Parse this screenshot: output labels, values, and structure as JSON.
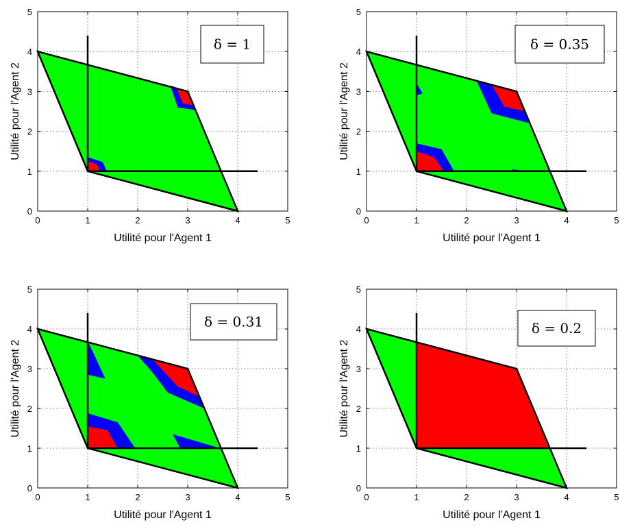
{
  "colors": {
    "green": "#00ff00",
    "red": "#ff0000",
    "blue": "#0000ff",
    "line": "#000000"
  },
  "chart_data": [
    {
      "type": "area",
      "legend": "δ = 1",
      "legend_placement": "top-right",
      "xlabel": "Utilité pour l'Agent 1",
      "ylabel": "Utilité pour l'Agent 2",
      "xlim": [
        0,
        5
      ],
      "ylim": [
        0,
        5
      ],
      "xticks": [
        "0",
        "1",
        "2",
        "3",
        "4",
        "5"
      ],
      "yticks": [
        "0",
        "1",
        "2",
        "3",
        "4",
        "5"
      ],
      "grid": true,
      "disagreement_point": [
        1,
        1
      ],
      "axis_extent": 4.4,
      "feasible_region": [
        [
          0,
          4
        ],
        [
          3,
          3
        ],
        [
          4,
          0
        ],
        [
          1,
          1
        ]
      ],
      "regions": [
        {
          "color": "blue",
          "points": [
            [
              2.65,
              3.15
            ],
            [
              3.0,
              3.0
            ],
            [
              3.17,
              2.53
            ],
            [
              2.8,
              2.6
            ]
          ]
        },
        {
          "color": "red",
          "points": [
            [
              2.78,
              3.07
            ],
            [
              3.0,
              3.0
            ],
            [
              3.12,
              2.65
            ],
            [
              2.9,
              2.7
            ]
          ]
        },
        {
          "color": "blue",
          "points": [
            [
              1.0,
              1.35
            ],
            [
              1.3,
              1.23
            ],
            [
              1.38,
              1.0
            ],
            [
              1.0,
              1.0
            ]
          ]
        },
        {
          "color": "red",
          "points": [
            [
              1.0,
              1.25
            ],
            [
              1.18,
              1.18
            ],
            [
              1.25,
              1.0
            ],
            [
              1.0,
              1.0
            ]
          ]
        }
      ]
    },
    {
      "type": "area",
      "legend": "δ = 0.35",
      "legend_placement": "top-right",
      "xlabel": "Utilité pour l'Agent 1",
      "ylabel": "Utilité pour l'Agent 2",
      "xlim": [
        0,
        5
      ],
      "ylim": [
        0,
        5
      ],
      "xticks": [
        "0",
        "1",
        "2",
        "3",
        "4",
        "5"
      ],
      "yticks": [
        "0",
        "1",
        "2",
        "3",
        "4",
        "5"
      ],
      "grid": true,
      "disagreement_point": [
        1,
        1
      ],
      "axis_extent": 4.4,
      "feasible_region": [
        [
          0,
          4
        ],
        [
          3,
          3
        ],
        [
          4,
          0
        ],
        [
          1,
          1
        ]
      ],
      "regions": [
        {
          "color": "blue",
          "points": [
            [
              2.2,
              3.27
            ],
            [
              3.0,
              3.0
            ],
            [
              3.27,
              2.2
            ],
            [
              2.5,
              2.45
            ]
          ]
        },
        {
          "color": "red",
          "points": [
            [
              2.5,
              3.17
            ],
            [
              3.0,
              3.0
            ],
            [
              3.17,
              2.5
            ],
            [
              2.75,
              2.62
            ]
          ]
        },
        {
          "color": "blue",
          "points": [
            [
              1.0,
              1.7
            ],
            [
              1.5,
              1.55
            ],
            [
              1.75,
              1.0
            ],
            [
              1.0,
              1.0
            ]
          ]
        },
        {
          "color": "red",
          "points": [
            [
              1.0,
              1.5
            ],
            [
              1.35,
              1.35
            ],
            [
              1.55,
              1.0
            ],
            [
              1.0,
              1.0
            ]
          ]
        },
        {
          "color": "blue",
          "points": [
            [
              1.0,
              3.2
            ],
            [
              1.12,
              2.95
            ],
            [
              1.0,
              2.9
            ]
          ]
        },
        {
          "color": "blue",
          "points": [
            [
              2.9,
              1.05
            ],
            [
              3.2,
              1.0
            ],
            [
              2.95,
              1.0
            ]
          ]
        }
      ]
    },
    {
      "type": "area",
      "legend": "δ = 0.31",
      "legend_placement": "top-right",
      "xlabel": "Utilité pour l'Agent 1",
      "ylabel": "Utilité pour l'Agent 2",
      "xlim": [
        0,
        5
      ],
      "ylim": [
        0,
        5
      ],
      "xticks": [
        "0",
        "1",
        "2",
        "3",
        "4",
        "5"
      ],
      "yticks": [
        "0",
        "1",
        "2",
        "3",
        "4",
        "5"
      ],
      "grid": true,
      "disagreement_point": [
        1,
        1
      ],
      "axis_extent": 4.4,
      "feasible_region": [
        [
          0,
          4
        ],
        [
          3,
          3
        ],
        [
          4,
          0
        ],
        [
          1,
          1
        ]
      ],
      "regions": [
        {
          "color": "blue",
          "points": [
            [
              2.0,
              3.33
            ],
            [
              3.0,
              3.0
            ],
            [
              3.33,
              2.0
            ],
            [
              2.6,
              2.4
            ],
            [
              2.3,
              2.9
            ]
          ]
        },
        {
          "color": "red",
          "points": [
            [
              2.3,
              3.23
            ],
            [
              3.0,
              3.0
            ],
            [
              3.23,
              2.3
            ],
            [
              2.8,
              2.55
            ]
          ]
        },
        {
          "color": "blue",
          "points": [
            [
              1.0,
              1.88
            ],
            [
              1.6,
              1.65
            ],
            [
              1.95,
              1.0
            ],
            [
              1.0,
              1.0
            ]
          ]
        },
        {
          "color": "red",
          "points": [
            [
              1.0,
              1.55
            ],
            [
              1.4,
              1.45
            ],
            [
              1.6,
              1.0
            ],
            [
              1.0,
              1.0
            ]
          ]
        },
        {
          "color": "blue",
          "points": [
            [
              1.0,
              3.7
            ],
            [
              1.35,
              2.75
            ],
            [
              1.0,
              2.85
            ]
          ]
        },
        {
          "color": "blue",
          "points": [
            [
              2.7,
              1.35
            ],
            [
              3.65,
              1.0
            ],
            [
              2.85,
              1.0
            ]
          ]
        }
      ]
    },
    {
      "type": "area",
      "legend": "δ = 0.2",
      "legend_placement": "top-right",
      "xlabel": "Utilité pour l'Agent 1",
      "ylabel": "Utilité pour l'Agent 2",
      "xlim": [
        0,
        5
      ],
      "ylim": [
        0,
        5
      ],
      "xticks": [
        "0",
        "1",
        "2",
        "3",
        "4",
        "5"
      ],
      "yticks": [
        "0",
        "1",
        "2",
        "3",
        "4",
        "5"
      ],
      "grid": true,
      "disagreement_point": [
        1,
        1
      ],
      "axis_extent": 4.4,
      "feasible_region": [
        [
          0,
          4
        ],
        [
          3,
          3
        ],
        [
          4,
          0
        ],
        [
          1,
          1
        ]
      ],
      "regions": [
        {
          "color": "red",
          "points": [
            [
              1.0,
              3.667
            ],
            [
              3.0,
              3.0
            ],
            [
              3.667,
              1.0
            ],
            [
              1.0,
              1.0
            ]
          ]
        }
      ]
    }
  ]
}
